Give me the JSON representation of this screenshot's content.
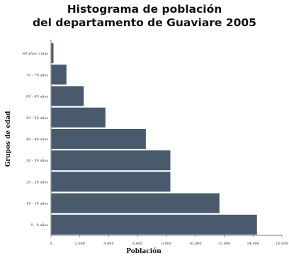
{
  "chart_data": {
    "type": "bar",
    "orientation": "horizontal",
    "title": [
      "Histograma de población",
      "del departamento de Guaviare 2005"
    ],
    "xlabel": "Población",
    "ylabel": "Grupos de edad",
    "categories": [
      "80 años o más",
      "70 - 79 años",
      "60 - 69 años",
      "50 - 59 años",
      "40 - 49 años",
      "30 - 39 años",
      "20 - 29 años",
      "10 - 19 años",
      "0 - 9 años"
    ],
    "values": [
      200,
      1100,
      2300,
      3800,
      6600,
      8300,
      8300,
      11700,
      14300
    ],
    "xlim": [
      0,
      16000
    ],
    "xticks": [
      0,
      2000,
      4000,
      6000,
      8000,
      10000,
      12000,
      14000,
      16000
    ],
    "xtick_labels": [
      "0",
      "2,000",
      "4,000",
      "6,000",
      "8,000",
      "10,000",
      "12,000",
      "14,000",
      "16,000"
    ],
    "bar_color": "#4a5a6d",
    "bar_edge_color": "#ffffff",
    "grid": false,
    "legend": "none"
  }
}
